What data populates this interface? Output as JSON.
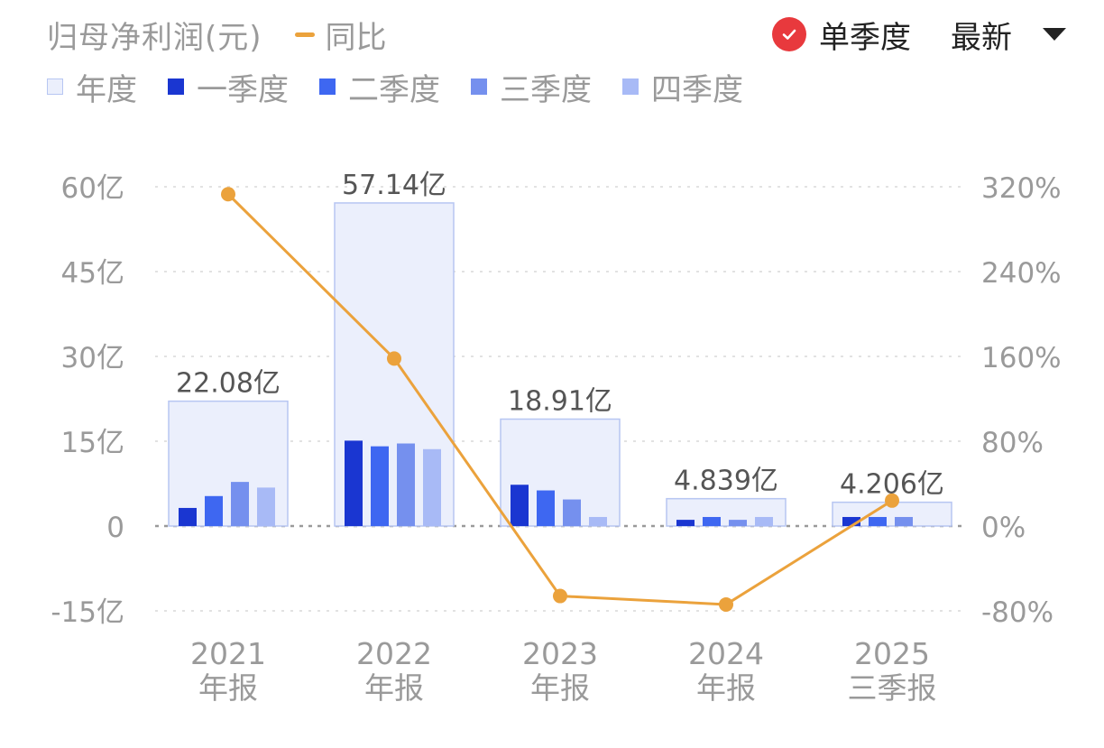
{
  "header": {
    "metric_title": "归母净利润(元)",
    "yoy_label": "同比",
    "single_quarter_label": "单季度",
    "single_quarter_checked": true,
    "period_select_value": "最新"
  },
  "legend": [
    {
      "label": "年度",
      "color": "#EBEFFC"
    },
    {
      "label": "一季度",
      "color": "#1A36D1"
    },
    {
      "label": "二季度",
      "color": "#3E67F1"
    },
    {
      "label": "三季度",
      "color": "#7590EE"
    },
    {
      "label": "四季度",
      "color": "#A8BAF6"
    }
  ],
  "colors": {
    "annual_fill": "#EBEFFC",
    "annual_border": "#B7C6F2",
    "q1": "#1A36D1",
    "q2": "#3E67F1",
    "q3": "#7590EE",
    "q4": "#A8BAF6",
    "yoy_line": "#EBA23C",
    "check": "#E8393D",
    "grid": "#E2E2E2",
    "zero_line": "#9A9A9A",
    "axis_text": "#9A9A9A"
  },
  "icons": {
    "check": "check-circle-icon",
    "dropdown": "caret-down-icon"
  },
  "chart_data": {
    "type": "bar",
    "categories": [
      {
        "year": "2021",
        "period": "年报"
      },
      {
        "year": "2022",
        "period": "年报"
      },
      {
        "year": "2023",
        "period": "年报"
      },
      {
        "year": "2024",
        "period": "年报"
      },
      {
        "year": "2025",
        "period": "三季报"
      }
    ],
    "annual": {
      "name": "年度",
      "values": [
        22.08,
        57.14,
        18.91,
        4.839,
        4.206
      ],
      "labels": [
        "22.08亿",
        "57.14亿",
        "18.91亿",
        "4.839亿",
        "4.206亿"
      ]
    },
    "quarters": [
      {
        "name": "一季度",
        "values": [
          3.2,
          15.1,
          7.3,
          1.1,
          1.6
        ]
      },
      {
        "name": "二季度",
        "values": [
          5.3,
          14.1,
          6.3,
          1.6,
          1.6
        ]
      },
      {
        "name": "三季度",
        "values": [
          7.8,
          14.6,
          4.7,
          1.1,
          1.6
        ]
      },
      {
        "name": "四季度",
        "values": [
          6.8,
          13.6,
          1.6,
          1.6,
          null
        ]
      }
    ],
    "yoy": {
      "name": "同比",
      "type": "line",
      "values": [
        313,
        158,
        -66,
        -74,
        24
      ]
    },
    "left_axis": {
      "range": [
        -15,
        60
      ],
      "ticks": [
        60,
        45,
        30,
        15,
        0,
        -15
      ],
      "tick_labels": [
        "60亿",
        "45亿",
        "30亿",
        "15亿",
        "0",
        "-15亿"
      ]
    },
    "right_axis": {
      "range": [
        -80,
        320
      ],
      "ticks": [
        320,
        240,
        160,
        80,
        0,
        -80
      ],
      "tick_labels": [
        "320%",
        "240%",
        "160%",
        "80%",
        "0%",
        "-80%"
      ]
    },
    "grid": true
  }
}
